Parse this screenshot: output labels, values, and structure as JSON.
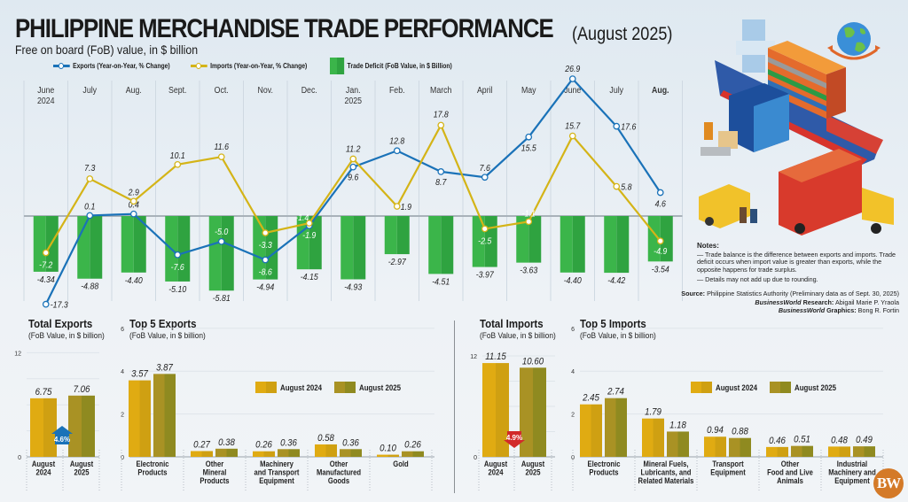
{
  "header": {
    "title": "PHILIPPINE MERCHANDISE TRADE PERFORMANCE",
    "title_period": "(August 2025)",
    "subtitle": "Free on board (FoB) value, in $ billion"
  },
  "legend": {
    "exports": "Exports (Year-on-Year, % Change)",
    "imports": "Imports (Year-on-Year, % Change)",
    "deficit": "Trade Deficit (FoB Value, in $ Billion)"
  },
  "colors": {
    "exports_line": "#1a72b8",
    "imports_line": "#d4b417",
    "deficit_bar": "#3bb54a",
    "deficit_bar_dark": "#2fa340",
    "aug2024_bar": "#e0ab12",
    "aug2025_bar": "#a99224",
    "up_badge": "#1a72b8",
    "down_badge": "#d22a2a",
    "logo": "#d47a28"
  },
  "notes": {
    "heading": "Notes:",
    "items": [
      "— Trade balance is the difference between exports and imports. Trade deficit occurs when import value is greater than exports, while the opposite happens for trade surplus.",
      "— Details may not add up due to rounding."
    ]
  },
  "credits": {
    "source_label": "Source:",
    "source_text": "Philippine Statistics Authority (Preliminary data as of Sept. 30, 2025)",
    "research_label": "BusinessWorld",
    "research_role": "Research:",
    "research_name": "Abigail Marie P. Yraola",
    "graphics_label": "BusinessWorld",
    "graphics_role": "Graphics:",
    "graphics_name": "Bong R. Fortin"
  },
  "logo": "BW",
  "sections": {
    "total_exports": {
      "title": "Total Exports",
      "subtitle": "(FoB Value, in $ billion)"
    },
    "top5_exports": {
      "title": "Top 5 Exports",
      "subtitle": "(FoB Value, in $ billion)"
    },
    "total_imports": {
      "title": "Total Imports",
      "subtitle": "(FoB Value, in $ billion)"
    },
    "top5_imports": {
      "title": "Top 5 Imports",
      "subtitle": "(FoB Value, in $ billion)"
    }
  },
  "chart_data": [
    {
      "id": "main",
      "type": "bar",
      "title": "Philippine Merchandise Trade Performance",
      "categories": [
        [
          "June",
          "2024"
        ],
        [
          "July"
        ],
        [
          "Aug."
        ],
        [
          "Sept."
        ],
        [
          "Oct."
        ],
        [
          "Nov."
        ],
        [
          "Dec."
        ],
        [
          "Jan.",
          "2025"
        ],
        [
          "Feb."
        ],
        [
          "March"
        ],
        [
          "April"
        ],
        [
          "May"
        ],
        [
          "June"
        ],
        [
          "July"
        ],
        [
          "Aug."
        ]
      ],
      "series": [
        {
          "name": "Trade Deficit (FoB Value, in $ Billion)",
          "kind": "bar",
          "values": [
            -4.34,
            -4.88,
            -4.4,
            -5.1,
            -5.81,
            -4.94,
            -4.15,
            -4.93,
            -2.97,
            -4.51,
            -3.97,
            -3.63,
            -4.4,
            -4.42,
            -3.54
          ]
        },
        {
          "name": "Exports (Year-on-Year, % Change)",
          "kind": "line",
          "values": [
            -17.3,
            0.1,
            0.4,
            -7.6,
            -5.0,
            -8.6,
            -1.9,
            9.6,
            12.8,
            8.7,
            7.6,
            15.5,
            26.9,
            17.6,
            4.6
          ]
        },
        {
          "name": "Imports (Year-on-Year, % Change)",
          "kind": "line",
          "values": [
            -7.2,
            7.3,
            2.9,
            10.1,
            11.6,
            -3.3,
            -1.4,
            11.2,
            1.9,
            17.8,
            -2.5,
            -1.1,
            15.7,
            5.8,
            -4.9
          ]
        }
      ],
      "legend_position": "top"
    },
    {
      "id": "total_exports",
      "type": "bar",
      "title": "Total Exports",
      "ylabel": "FoB Value, in $ billion",
      "categories": [
        [
          "August",
          "2024"
        ],
        [
          "August",
          "2025"
        ]
      ],
      "values": [
        6.75,
        7.06
      ],
      "ylim": [
        0,
        12
      ],
      "yticks": [
        0,
        12
      ],
      "change_label": "4.6%",
      "change_direction": "up"
    },
    {
      "id": "top5_exports",
      "type": "bar",
      "title": "Top 5 Exports",
      "ylabel": "FoB Value, in $ billion",
      "categories": [
        [
          "Electronic",
          "Products"
        ],
        [
          "Other",
          "Mineral",
          "Products"
        ],
        [
          "Machinery",
          "and Transport",
          "Equipment"
        ],
        [
          "Other",
          "Manufactured",
          "Goods"
        ],
        [
          "Gold"
        ]
      ],
      "series": [
        {
          "name": "August 2024",
          "values": [
            3.57,
            0.27,
            0.26,
            0.58,
            0.1
          ]
        },
        {
          "name": "August 2025",
          "values": [
            3.87,
            0.38,
            0.36,
            0.36,
            0.26
          ]
        }
      ],
      "ylim": [
        0,
        6
      ],
      "yticks": [
        0,
        2,
        4,
        6
      ],
      "legend": [
        "August 2024",
        "August 2025"
      ]
    },
    {
      "id": "total_imports",
      "type": "bar",
      "title": "Total Imports",
      "ylabel": "FoB Value, in $ billion",
      "categories": [
        [
          "August",
          "2024"
        ],
        [
          "August",
          "2025"
        ]
      ],
      "values": [
        11.15,
        10.6
      ],
      "ylim": [
        0,
        12
      ],
      "yticks": [
        0,
        12
      ],
      "change_label": "4.9%",
      "change_direction": "down"
    },
    {
      "id": "top5_imports",
      "type": "bar",
      "title": "Top 5 Imports",
      "ylabel": "FoB Value, in $ billion",
      "categories": [
        [
          "Electronic",
          "Products"
        ],
        [
          "Mineral Fuels,",
          "Lubricants, and",
          "Related Materials"
        ],
        [
          "Transport",
          "Equipment"
        ],
        [
          "Other",
          "Food and Live",
          "Animals"
        ],
        [
          "Industrial",
          "Machinery and",
          "Equipment"
        ]
      ],
      "series": [
        {
          "name": "August 2024",
          "values": [
            2.45,
            1.79,
            0.94,
            0.46,
            0.48
          ]
        },
        {
          "name": "August 2025",
          "values": [
            2.74,
            1.18,
            0.88,
            0.51,
            0.49
          ]
        }
      ],
      "ylim": [
        0,
        6
      ],
      "yticks": [
        0,
        2,
        4,
        6
      ],
      "legend": [
        "August 2024",
        "August 2025"
      ]
    }
  ]
}
